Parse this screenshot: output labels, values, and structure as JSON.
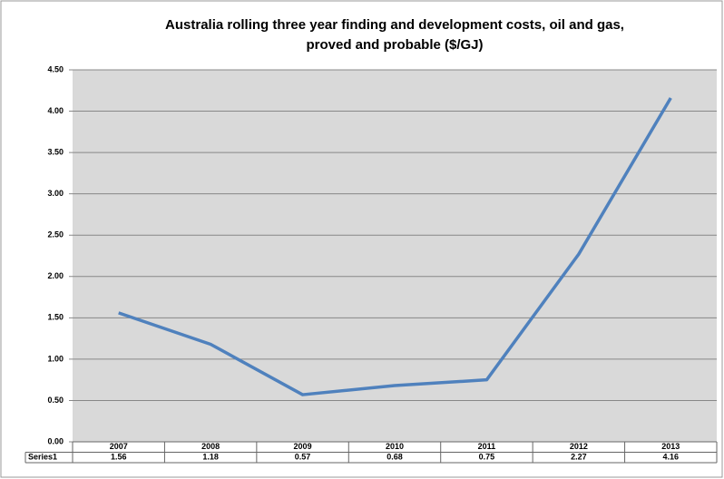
{
  "chart_data": {
    "type": "line",
    "title": [
      "Australia rolling three year finding and development costs, oil and gas,",
      "proved and probable ($/GJ)"
    ],
    "categories": [
      "2007",
      "2008",
      "2009",
      "2010",
      "2011",
      "2012",
      "2013"
    ],
    "series": [
      {
        "name": "Series1",
        "color": "#4f81bd",
        "values": [
          1.56,
          1.18,
          0.57,
          0.68,
          0.75,
          2.27,
          4.16
        ]
      }
    ],
    "ylim": [
      0,
      4.5
    ],
    "yticks": [
      {
        "value": 0,
        "label": "0.00"
      },
      {
        "value": 0.5,
        "label": "0.50"
      },
      {
        "value": 1,
        "label": "1.00"
      },
      {
        "value": 1.5,
        "label": "1.50"
      },
      {
        "value": 2,
        "label": "2.00"
      },
      {
        "value": 2.5,
        "label": "2.50"
      },
      {
        "value": 3,
        "label": "3.00"
      },
      {
        "value": 3.5,
        "label": "3.50"
      },
      {
        "value": 4,
        "label": "4.00"
      },
      {
        "value": 4.5,
        "label": "4.50"
      }
    ],
    "grid": true
  }
}
